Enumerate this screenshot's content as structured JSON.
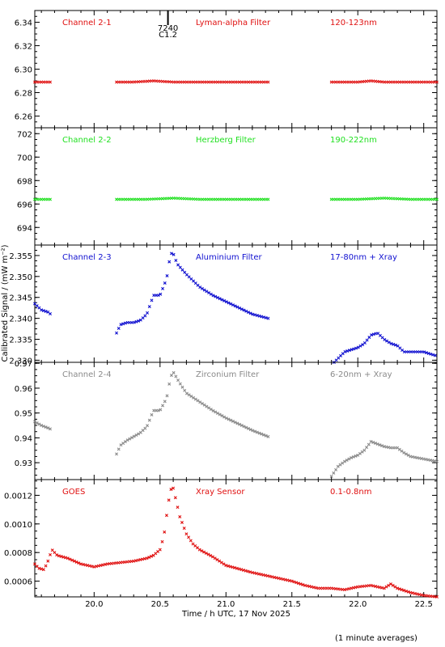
{
  "footnote": "(1 minute averages)",
  "x_axis": {
    "label": "Time / h UTC, 17 Nov 2025",
    "range": [
      19.55,
      22.6
    ],
    "ticks": [
      20.0,
      20.5,
      21.0,
      21.5,
      22.0,
      22.5
    ],
    "tick_labels": [
      "20.0",
      "20.5",
      "21.0",
      "21.5",
      "22.0",
      "22.5"
    ]
  },
  "y_axis_label": "Calibrated Signal / (mW m⁻²)",
  "flare_marker": {
    "time": 20.56,
    "label_top": "7240",
    "label_bottom": "C1.2"
  },
  "colors": {
    "red": "#e01010",
    "green": "#20e020",
    "blue": "#1010d0",
    "gray": "#8a8a8a",
    "axis": "#000000"
  },
  "chart_data": [
    {
      "type": "scatter",
      "channel": "Channel 2-1",
      "filter": "Lyman-alpha Filter",
      "band": "120-123nm",
      "color": "red",
      "ylim": [
        6.25,
        6.35
      ],
      "y_ticks": [
        6.26,
        6.28,
        6.3,
        6.32,
        6.34
      ],
      "y_tick_labels": [
        "6.26",
        "6.28",
        "6.30",
        "6.32",
        "6.34"
      ],
      "segments": [
        {
          "x": [
            19.55,
            19.65,
            19.67
          ],
          "y": [
            6.289,
            6.289,
            6.289
          ]
        },
        {
          "x": [
            20.17,
            20.3,
            20.45,
            20.6,
            20.8,
            21.0,
            21.2,
            21.32
          ],
          "y": [
            6.289,
            6.289,
            6.29,
            6.289,
            6.289,
            6.289,
            6.289,
            6.289
          ]
        },
        {
          "x": [
            21.8,
            22.0,
            22.1,
            22.2,
            22.4,
            22.6
          ],
          "y": [
            6.289,
            6.289,
            6.29,
            6.289,
            6.289,
            6.289
          ]
        }
      ]
    },
    {
      "type": "scatter",
      "channel": "Channel 2-2",
      "filter": "Herzberg Filter",
      "band": "190-222nm",
      "color": "green",
      "ylim": [
        692.5,
        702.5
      ],
      "y_ticks": [
        694,
        696,
        698,
        700,
        702
      ],
      "y_tick_labels": [
        "694",
        "696",
        "698",
        "700",
        "702"
      ],
      "segments": [
        {
          "x": [
            19.55,
            19.65,
            19.67
          ],
          "y": [
            696.4,
            696.4,
            696.4
          ]
        },
        {
          "x": [
            20.17,
            20.4,
            20.6,
            20.8,
            21.0,
            21.32
          ],
          "y": [
            696.4,
            696.4,
            696.5,
            696.4,
            696.4,
            696.4
          ]
        },
        {
          "x": [
            21.8,
            22.0,
            22.2,
            22.4,
            22.6
          ],
          "y": [
            696.4,
            696.4,
            696.5,
            696.4,
            696.4
          ]
        }
      ]
    },
    {
      "type": "scatter",
      "channel": "Channel 2-3",
      "filter": "Aluminium Filter",
      "band": "17-80nm + Xray",
      "color": "blue",
      "ylim": [
        2.3295,
        2.3575
      ],
      "y_ticks": [
        2.33,
        2.335,
        2.34,
        2.345,
        2.35,
        2.355
      ],
      "y_tick_labels": [
        "2.330",
        "2.335",
        "2.340",
        "2.345",
        "2.350",
        "2.355"
      ],
      "segments": [
        {
          "x": [
            19.55,
            19.6,
            19.65,
            19.67
          ],
          "y": [
            2.3435,
            2.342,
            2.3415,
            2.341
          ]
        },
        {
          "x": [
            20.17,
            20.2,
            20.25,
            20.3,
            20.35,
            20.4,
            20.45,
            20.5,
            20.55,
            20.58,
            20.6,
            20.63,
            20.7,
            20.8,
            20.9,
            21.0,
            21.1,
            21.2,
            21.32
          ],
          "y": [
            2.3365,
            2.3385,
            2.339,
            2.339,
            2.3395,
            2.341,
            2.3455,
            2.3455,
            2.3495,
            2.3555,
            2.3555,
            2.353,
            2.3505,
            2.3475,
            2.3455,
            2.344,
            2.3425,
            2.341,
            2.34
          ]
        },
        {
          "x": [
            21.82,
            21.9,
            22.0,
            22.05,
            22.1,
            22.15,
            22.2,
            22.25,
            22.3,
            22.35,
            22.4,
            22.5,
            22.6
          ],
          "y": [
            2.3295,
            2.332,
            2.333,
            2.334,
            2.336,
            2.3365,
            2.335,
            2.334,
            2.3335,
            2.332,
            2.332,
            2.332,
            2.331
          ]
        }
      ]
    },
    {
      "type": "scatter",
      "channel": "Channel 2-4",
      "filter": "Zirconium Filter",
      "band": "6-20nm + Xray",
      "color": "gray",
      "ylim": [
        0.9232,
        0.9704
      ],
      "y_ticks": [
        0.93,
        0.94,
        0.95,
        0.96,
        0.97
      ],
      "y_tick_labels": [
        "0.93",
        "0.94",
        "0.95",
        "0.96",
        "0.97"
      ],
      "segments": [
        {
          "x": [
            19.55,
            19.6,
            19.65,
            19.67
          ],
          "y": [
            0.9465,
            0.945,
            0.944,
            0.9435
          ]
        },
        {
          "x": [
            20.17,
            20.2,
            20.25,
            20.3,
            20.35,
            20.4,
            20.45,
            20.5,
            20.55,
            20.58,
            20.6,
            20.65,
            20.7,
            20.8,
            20.9,
            21.0,
            21.1,
            21.2,
            21.32
          ],
          "y": [
            0.9335,
            0.937,
            0.939,
            0.9405,
            0.942,
            0.9445,
            0.951,
            0.951,
            0.956,
            0.9645,
            0.9665,
            0.962,
            0.958,
            0.9545,
            0.951,
            0.948,
            0.9455,
            0.943,
            0.9405
          ]
        },
        {
          "x": [
            21.8,
            21.85,
            21.9,
            21.95,
            22.0,
            22.05,
            22.1,
            22.15,
            22.2,
            22.25,
            22.3,
            22.35,
            22.4,
            22.5,
            22.6
          ],
          "y": [
            0.9245,
            0.9285,
            0.9305,
            0.932,
            0.933,
            0.935,
            0.9385,
            0.9375,
            0.9365,
            0.936,
            0.936,
            0.934,
            0.9325,
            0.9315,
            0.9305
          ]
        }
      ]
    },
    {
      "type": "scatter",
      "channel": "GOES",
      "filter": "Xray Sensor",
      "band": "0.1-0.8nm",
      "color": "red",
      "ylim": [
        0.00049,
        0.00131
      ],
      "y_ticks": [
        0.0006,
        0.0008,
        0.001,
        0.0012
      ],
      "y_tick_labels": [
        "0.0006",
        "0.0008",
        "0.0010",
        "0.0012"
      ],
      "segments": [
        {
          "x": [
            19.55,
            19.58,
            19.62,
            19.65,
            19.68,
            19.72,
            19.8,
            19.9,
            20.0,
            20.1,
            20.2,
            20.3,
            20.4,
            20.45,
            20.5,
            20.53,
            20.56,
            20.58,
            20.6,
            20.62,
            20.65,
            20.7,
            20.75,
            20.8,
            20.9,
            21.0,
            21.2,
            21.4,
            21.5,
            21.6,
            21.7,
            21.8,
            21.9,
            22.0,
            22.1,
            22.2,
            22.25,
            22.3,
            22.4,
            22.5,
            22.6
          ],
          "y": [
            0.00072,
            0.00069,
            0.00068,
            0.00074,
            0.00082,
            0.00078,
            0.00076,
            0.00072,
            0.0007,
            0.00072,
            0.00073,
            0.00074,
            0.00076,
            0.00078,
            0.00082,
            0.00092,
            0.00113,
            0.00124,
            0.00125,
            0.00117,
            0.00105,
            0.00093,
            0.00086,
            0.00082,
            0.00077,
            0.00071,
            0.00066,
            0.00062,
            0.0006,
            0.00057,
            0.00055,
            0.00055,
            0.00054,
            0.00056,
            0.00057,
            0.00055,
            0.00058,
            0.00055,
            0.00052,
            0.0005,
            0.00049
          ]
        }
      ]
    }
  ]
}
